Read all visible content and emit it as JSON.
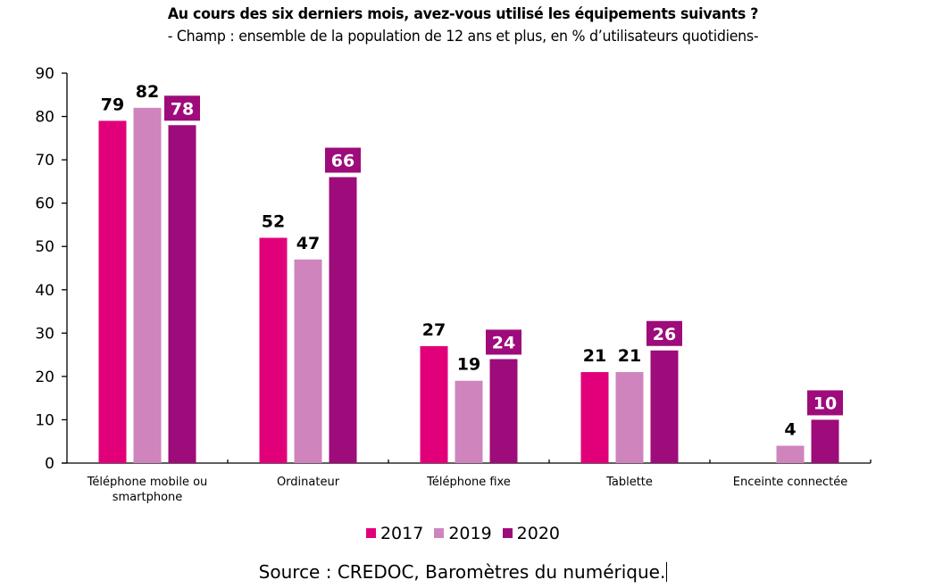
{
  "chart_data": {
    "type": "bar",
    "title": "Au cours des six derniers mois, avez-vous utilisé les équipements suivants ?",
    "subtitle": "- Champ : ensemble de la population de 12 ans et plus, en % d’utilisateurs quotidiens-",
    "categories": [
      [
        "Téléphone mobile ou",
        "smartphone"
      ],
      [
        "Ordinateur"
      ],
      [
        "Téléphone fixe"
      ],
      [
        "Tablette"
      ],
      [
        "Enceinte connectée"
      ]
    ],
    "series": [
      {
        "name": "2017",
        "color": "#e2007a",
        "values": [
          79,
          52,
          27,
          21,
          null
        ],
        "label_style": "plain"
      },
      {
        "name": "2019",
        "color": "#cf84bd",
        "values": [
          82,
          47,
          19,
          21,
          4
        ],
        "label_style": "plain"
      },
      {
        "name": "2020",
        "color": "#9e0b7a",
        "values": [
          78,
          66,
          24,
          26,
          10
        ],
        "label_style": "boxed"
      }
    ],
    "xlabel": "",
    "ylabel": "",
    "ylim": [
      0,
      90
    ],
    "yticks": [
      0,
      10,
      20,
      30,
      40,
      50,
      60,
      70,
      80,
      90
    ],
    "grid": false,
    "legend_position": "bottom"
  },
  "source": "Source : CREDOC, Baromètres du numérique."
}
